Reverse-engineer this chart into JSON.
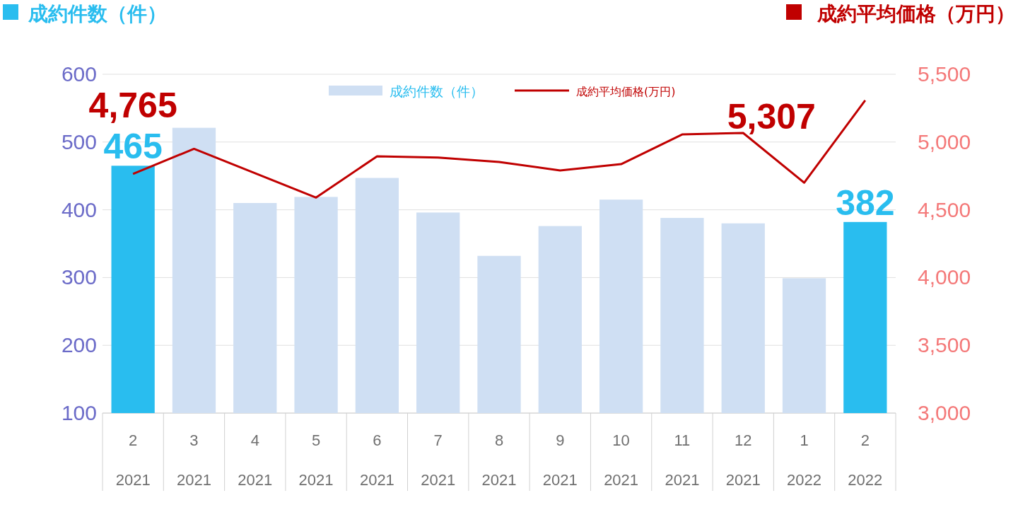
{
  "chart_data": {
    "type": "bar",
    "ylabel": "成約件数（件）",
    "y2label": "成約平均価格（万円）",
    "categories": [
      "2\n2021",
      "3\n2021",
      "4\n2021",
      "5\n2021",
      "6\n2021",
      "7\n2021",
      "8\n2021",
      "9\n2021",
      "10\n2021",
      "11\n2021",
      "12\n2021",
      "1\n2022",
      "2\n2022"
    ],
    "series": [
      {
        "name": "成約件数（件）",
        "color": "#cfdff3",
        "colors": [
          "#29bdef",
          "#cfdff3",
          "#cfdff3",
          "#cfdff3",
          "#cfdff3",
          "#cfdff3",
          "#cfdff3",
          "#cfdff3",
          "#cfdff3",
          "#cfdff3",
          "#cfdff3",
          "#cfdff3",
          "#29bdef"
        ],
        "values": [
          465,
          521,
          410,
          419,
          447,
          396,
          332,
          376,
          415,
          388,
          380,
          299,
          382
        ],
        "value_labels": [
          "465",
          null,
          null,
          null,
          null,
          null,
          null,
          null,
          null,
          null,
          null,
          null,
          "382"
        ]
      },
      {
        "name": "成約平均価格(万円)",
        "type": "line",
        "axis": "y2",
        "color": "#c00000",
        "values": [
          4765,
          4950,
          4770,
          4590,
          4895,
          4885,
          4853,
          4790,
          4837,
          5056,
          5067,
          4700,
          5307
        ],
        "value_labels": [
          "4,765",
          null,
          null,
          null,
          null,
          null,
          null,
          null,
          null,
          null,
          null,
          null,
          "5,307"
        ]
      }
    ],
    "ylim": [
      100,
      600
    ],
    "yticks": [
      100,
      200,
      300,
      400,
      500,
      600
    ],
    "y2lim": [
      3000,
      5500
    ],
    "y2ticks": [
      {
        "value": 3000,
        "label": "3,000"
      },
      {
        "value": 3500,
        "label": "3,500"
      },
      {
        "value": 4000,
        "label": "4,000"
      },
      {
        "value": 4500,
        "label": "4,500"
      },
      {
        "value": 5000,
        "label": "5,000"
      },
      {
        "value": 5500,
        "label": "5,500"
      }
    ],
    "grid": "y",
    "legend": "top",
    "marker": "none",
    "line_style": "solid"
  }
}
